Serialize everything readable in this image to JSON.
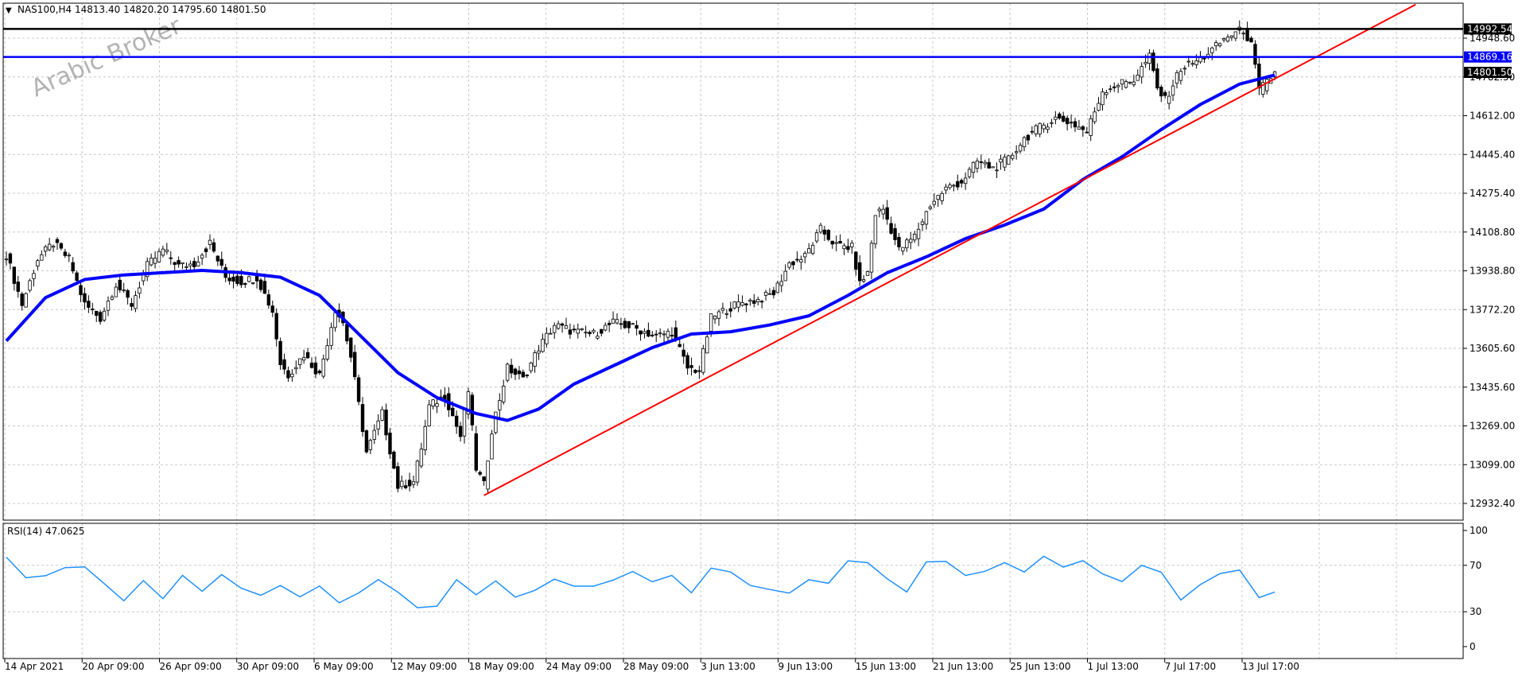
{
  "chart_header": {
    "symbol_timeframe": "NAS100,H4",
    "ohlc": "14813.40 14820.20 14795.60 14801.50",
    "menu_glyph": "▼"
  },
  "watermark": "Arabic Broker",
  "rsi_label": "RSI(14) 47.0625",
  "colors": {
    "background": "#ffffff",
    "grid": "#c8c8c8",
    "candles": "#000000",
    "moving_average": "#0000ff",
    "trendline": "#ff0000",
    "resistance_line": "#000000",
    "support_line": "#0000ff",
    "rsi_line": "#1e90ff",
    "watermark": "#a0a0a0"
  },
  "chart_data": [
    {
      "type": "candlestick",
      "title": "NAS100,H4",
      "x_tick_labels": [
        "14 Apr 2021",
        "20 Apr 09:00",
        "26 Apr 09:00",
        "30 Apr 09:00",
        "6 May 09:00",
        "12 May 09:00",
        "18 May 09:00",
        "24 May 09:00",
        "28 May 09:00",
        "3 Jun 13:00",
        "9 Jun 13:00",
        "15 Jun 13:00",
        "21 Jun 13:00",
        "25 Jun 13:00",
        "1 Jul 13:00",
        "7 Jul 17:00",
        "13 Jul 17:00"
      ],
      "y_tick_labels": [
        "14948.60",
        "14782.50",
        "14612.00",
        "14445.40",
        "14275.40",
        "14108.80",
        "13938.80",
        "13772.20",
        "13605.60",
        "13435.60",
        "13269.00",
        "13099.00",
        "12932.40"
      ],
      "ylim": [
        12880,
        15050
      ],
      "grid": true,
      "close_path": [
        {
          "bar": 0,
          "close": 14000
        },
        {
          "bar": 4,
          "close": 13780
        },
        {
          "bar": 8,
          "close": 13980
        },
        {
          "bar": 12,
          "close": 14050
        },
        {
          "bar": 16,
          "close": 13980
        },
        {
          "bar": 20,
          "close": 13780
        },
        {
          "bar": 24,
          "close": 13720
        },
        {
          "bar": 28,
          "close": 13870
        },
        {
          "bar": 32,
          "close": 13780
        },
        {
          "bar": 36,
          "close": 13950
        },
        {
          "bar": 40,
          "close": 14020
        },
        {
          "bar": 44,
          "close": 13950
        },
        {
          "bar": 48,
          "close": 13960
        },
        {
          "bar": 52,
          "close": 14050
        },
        {
          "bar": 56,
          "close": 13900
        },
        {
          "bar": 60,
          "close": 13880
        },
        {
          "bar": 64,
          "close": 13900
        },
        {
          "bar": 68,
          "close": 13750
        },
        {
          "bar": 70,
          "close": 13520
        },
        {
          "bar": 72,
          "close": 13470
        },
        {
          "bar": 76,
          "close": 13560
        },
        {
          "bar": 80,
          "close": 13470
        },
        {
          "bar": 84,
          "close": 13760
        },
        {
          "bar": 86,
          "close": 13700
        },
        {
          "bar": 88,
          "close": 13550
        },
        {
          "bar": 92,
          "close": 13130
        },
        {
          "bar": 96,
          "close": 13300
        },
        {
          "bar": 100,
          "close": 12980
        },
        {
          "bar": 104,
          "close": 13000
        },
        {
          "bar": 106,
          "close": 13150
        },
        {
          "bar": 108,
          "close": 13330
        },
        {
          "bar": 112,
          "close": 13380
        },
        {
          "bar": 116,
          "close": 13200
        },
        {
          "bar": 118,
          "close": 13400
        },
        {
          "bar": 120,
          "close": 13060
        },
        {
          "bar": 122,
          "close": 12985
        },
        {
          "bar": 124,
          "close": 13230
        },
        {
          "bar": 128,
          "close": 13500
        },
        {
          "bar": 132,
          "close": 13450
        },
        {
          "bar": 136,
          "close": 13590
        },
        {
          "bar": 140,
          "close": 13690
        },
        {
          "bar": 145,
          "close": 13660
        },
        {
          "bar": 150,
          "close": 13650
        },
        {
          "bar": 155,
          "close": 13700
        },
        {
          "bar": 160,
          "close": 13680
        },
        {
          "bar": 166,
          "close": 13640
        },
        {
          "bar": 170,
          "close": 13660
        },
        {
          "bar": 174,
          "close": 13500
        },
        {
          "bar": 177,
          "close": 13490
        },
        {
          "bar": 180,
          "close": 13720
        },
        {
          "bar": 184,
          "close": 13760
        },
        {
          "bar": 188,
          "close": 13790
        },
        {
          "bar": 192,
          "close": 13800
        },
        {
          "bar": 196,
          "close": 13830
        },
        {
          "bar": 200,
          "close": 13960
        },
        {
          "bar": 204,
          "close": 13990
        },
        {
          "bar": 208,
          "close": 14110
        },
        {
          "bar": 212,
          "close": 14040
        },
        {
          "bar": 216,
          "close": 14030
        },
        {
          "bar": 218,
          "close": 13870
        },
        {
          "bar": 220,
          "close": 13920
        },
        {
          "bar": 222,
          "close": 14180
        },
        {
          "bar": 224,
          "close": 14200
        },
        {
          "bar": 228,
          "close": 14020
        },
        {
          "bar": 232,
          "close": 14080
        },
        {
          "bar": 236,
          "close": 14220
        },
        {
          "bar": 240,
          "close": 14290
        },
        {
          "bar": 244,
          "close": 14320
        },
        {
          "bar": 248,
          "close": 14410
        },
        {
          "bar": 252,
          "close": 14380
        },
        {
          "bar": 256,
          "close": 14420
        },
        {
          "bar": 260,
          "close": 14510
        },
        {
          "bar": 264,
          "close": 14560
        },
        {
          "bar": 268,
          "close": 14600
        },
        {
          "bar": 272,
          "close": 14580
        },
        {
          "bar": 276,
          "close": 14540
        },
        {
          "bar": 280,
          "close": 14720
        },
        {
          "bar": 284,
          "close": 14750
        },
        {
          "bar": 288,
          "close": 14770
        },
        {
          "bar": 292,
          "close": 14870
        },
        {
          "bar": 294,
          "close": 14730
        },
        {
          "bar": 296,
          "close": 14680
        },
        {
          "bar": 300,
          "close": 14820
        },
        {
          "bar": 304,
          "close": 14850
        },
        {
          "bar": 308,
          "close": 14900
        },
        {
          "bar": 312,
          "close": 14960
        },
        {
          "bar": 316,
          "close": 14990
        },
        {
          "bar": 318,
          "close": 14920
        },
        {
          "bar": 320,
          "close": 14720
        },
        {
          "bar": 324,
          "close": 14800
        }
      ],
      "total_bars": 325,
      "moving_average": [
        {
          "bar": 0,
          "value": 13620
        },
        {
          "bar": 10,
          "value": 13810
        },
        {
          "bar": 20,
          "value": 13890
        },
        {
          "bar": 30,
          "value": 13910
        },
        {
          "bar": 40,
          "value": 13920
        },
        {
          "bar": 50,
          "value": 13930
        },
        {
          "bar": 60,
          "value": 13920
        },
        {
          "bar": 70,
          "value": 13900
        },
        {
          "bar": 80,
          "value": 13820
        },
        {
          "bar": 90,
          "value": 13650
        },
        {
          "bar": 100,
          "value": 13480
        },
        {
          "bar": 110,
          "value": 13370
        },
        {
          "bar": 120,
          "value": 13300
        },
        {
          "bar": 128,
          "value": 13270
        },
        {
          "bar": 136,
          "value": 13320
        },
        {
          "bar": 145,
          "value": 13430
        },
        {
          "bar": 155,
          "value": 13510
        },
        {
          "bar": 165,
          "value": 13590
        },
        {
          "bar": 175,
          "value": 13650
        },
        {
          "bar": 185,
          "value": 13660
        },
        {
          "bar": 195,
          "value": 13690
        },
        {
          "bar": 205,
          "value": 13730
        },
        {
          "bar": 215,
          "value": 13820
        },
        {
          "bar": 225,
          "value": 13920
        },
        {
          "bar": 235,
          "value": 13990
        },
        {
          "bar": 245,
          "value": 14070
        },
        {
          "bar": 255,
          "value": 14130
        },
        {
          "bar": 265,
          "value": 14200
        },
        {
          "bar": 275,
          "value": 14330
        },
        {
          "bar": 285,
          "value": 14430
        },
        {
          "bar": 295,
          "value": 14550
        },
        {
          "bar": 305,
          "value": 14660
        },
        {
          "bar": 315,
          "value": 14750
        },
        {
          "bar": 324,
          "value": 14790
        }
      ],
      "trendline": {
        "start": {
          "bar": 122,
          "value": 12940
        },
        "end": {
          "bar": 360,
          "value": 15100
        }
      },
      "horizontal_levels": [
        {
          "value": 14992.54,
          "label": "14992.54",
          "color": "#000000"
        },
        {
          "value": 14869.16,
          "label": "14869.16",
          "color": "#0000ff"
        },
        {
          "value": 14801.5,
          "label": "14801.50",
          "color": "#000000"
        }
      ]
    },
    {
      "type": "line",
      "title": "RSI(14) 47.0625",
      "ylim": [
        0,
        100
      ],
      "y_tick_labels": [
        "100",
        "70",
        "30",
        "0"
      ],
      "levels": [
        70,
        30
      ],
      "series": [
        {
          "values": [
            [
              0,
              77
            ],
            [
              5,
              58
            ],
            [
              10,
              62
            ],
            [
              15,
              68
            ],
            [
              20,
              66
            ],
            [
              25,
              52
            ],
            [
              30,
              40
            ],
            [
              35,
              57
            ],
            [
              40,
              44
            ],
            [
              45,
              60
            ],
            [
              50,
              50
            ],
            [
              55,
              62
            ],
            [
              60,
              50
            ],
            [
              65,
              46
            ],
            [
              70,
              52
            ],
            [
              75,
              44
            ],
            [
              80,
              50
            ],
            [
              85,
              38
            ],
            [
              90,
              46
            ],
            [
              95,
              55
            ],
            [
              100,
              44
            ],
            [
              105,
              32
            ],
            [
              110,
              36
            ],
            [
              115,
              55
            ],
            [
              120,
              44
            ],
            [
              125,
              58
            ],
            [
              130,
              42
            ],
            [
              135,
              49
            ],
            [
              140,
              60
            ],
            [
              145,
              52
            ],
            [
              150,
              54
            ],
            [
              155,
              59
            ],
            [
              160,
              66
            ],
            [
              165,
              56
            ],
            [
              170,
              60
            ],
            [
              175,
              48
            ],
            [
              180,
              65
            ],
            [
              185,
              62
            ],
            [
              190,
              52
            ],
            [
              195,
              47
            ],
            [
              200,
              46
            ],
            [
              205,
              58
            ],
            [
              210,
              56
            ],
            [
              215,
              73
            ],
            [
              220,
              72
            ],
            [
              225,
              58
            ],
            [
              230,
              48
            ],
            [
              235,
              70
            ],
            [
              240,
              76
            ],
            [
              245,
              60
            ],
            [
              250,
              66
            ],
            [
              255,
              72
            ],
            [
              260,
              64
            ],
            [
              265,
              75
            ],
            [
              270,
              68
            ],
            [
              275,
              72
            ],
            [
              280,
              63
            ],
            [
              285,
              58
            ],
            [
              290,
              68
            ],
            [
              295,
              65
            ],
            [
              300,
              42
            ],
            [
              305,
              52
            ],
            [
              310,
              62
            ],
            [
              315,
              65
            ],
            [
              320,
              42
            ],
            [
              324,
              47
            ]
          ]
        }
      ]
    }
  ]
}
